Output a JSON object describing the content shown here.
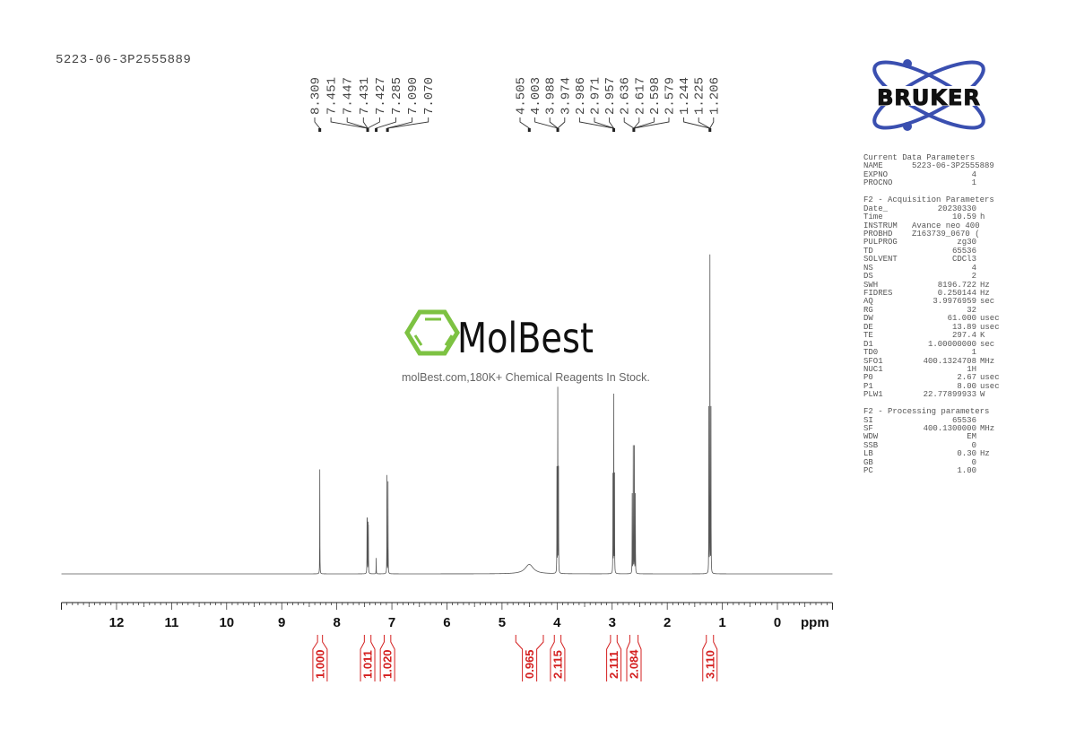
{
  "sample_id": "5223-06-3P2555889",
  "watermark": {
    "brand": "MolBest",
    "tagline": "molBest.com,180K+ Chemical Reagents In Stock.",
    "color": "#7dc242"
  },
  "logo": {
    "text": "BRUKER",
    "color": "#3a4fb0"
  },
  "parameters": {
    "sections": [
      {
        "title": "Current Data Parameters",
        "rows": [
          [
            "NAME",
            "5223-06-3P2555889",
            ""
          ],
          [
            "EXPNO",
            "4",
            ""
          ],
          [
            "PROCNO",
            "1",
            ""
          ]
        ]
      },
      {
        "title": "F2 - Acquisition Parameters",
        "rows": [
          [
            "Date_",
            "20230330",
            ""
          ],
          [
            "Time",
            "10.59",
            "h"
          ],
          [
            "INSTRUM",
            "Avance neo 400",
            ""
          ],
          [
            "PROBHD",
            "Z163739_0670 (",
            ""
          ],
          [
            "PULPROG",
            "zg30",
            ""
          ],
          [
            "TD",
            "65536",
            ""
          ],
          [
            "SOLVENT",
            "CDCl3",
            ""
          ],
          [
            "NS",
            "4",
            ""
          ],
          [
            "DS",
            "2",
            ""
          ],
          [
            "SWH",
            "8196.722",
            "Hz"
          ],
          [
            "FIDRES",
            "0.250144",
            "Hz"
          ],
          [
            "AQ",
            "3.9976959",
            "sec"
          ],
          [
            "RG",
            "32",
            ""
          ],
          [
            "DW",
            "61.000",
            "usec"
          ],
          [
            "DE",
            "13.89",
            "usec"
          ],
          [
            "TE",
            "297.4",
            "K"
          ],
          [
            "D1",
            "1.00000000",
            "sec"
          ],
          [
            "TD0",
            "1",
            ""
          ],
          [
            "SFO1",
            "400.1324708",
            "MHz"
          ],
          [
            "NUC1",
            "1H",
            ""
          ],
          [
            "P0",
            "2.67",
            "usec"
          ],
          [
            "P1",
            "8.00",
            "usec"
          ],
          [
            "PLW1",
            "22.77899933",
            "W"
          ]
        ]
      },
      {
        "title": "F2 - Processing parameters",
        "rows": [
          [
            "SI",
            "65536",
            ""
          ],
          [
            "SF",
            "400.1300000",
            "MHz"
          ],
          [
            "WDW",
            "EM",
            ""
          ],
          [
            "SSB",
            "0",
            ""
          ],
          [
            "LB",
            "0.30",
            "Hz"
          ],
          [
            "GB",
            "0",
            ""
          ],
          [
            "PC",
            "1.00",
            ""
          ]
        ]
      }
    ]
  },
  "chart_data": {
    "type": "line",
    "xlabel": "ppm",
    "xlim": [
      13.0,
      -1.0
    ],
    "x_reversed": true,
    "xticks": [
      12,
      11,
      10,
      9,
      8,
      7,
      6,
      5,
      4,
      3,
      2,
      1,
      0
    ],
    "grid": false,
    "line_color": "#555555",
    "integral_color": "#d42020",
    "peaks": [
      {
        "ppm": 8.309,
        "intensity": 0.33
      },
      {
        "ppm": 7.451,
        "intensity": 0.15
      },
      {
        "ppm": 7.447,
        "intensity": 0.15
      },
      {
        "ppm": 7.431,
        "intensity": 0.14
      },
      {
        "ppm": 7.427,
        "intensity": 0.13
      },
      {
        "ppm": 7.285,
        "intensity": 0.05
      },
      {
        "ppm": 7.09,
        "intensity": 0.31
      },
      {
        "ppm": 7.07,
        "intensity": 0.29
      },
      {
        "ppm": 4.505,
        "intensity": 0.03,
        "broad": true
      },
      {
        "ppm": 4.003,
        "intensity": 0.33
      },
      {
        "ppm": 3.988,
        "intensity": 0.58
      },
      {
        "ppm": 3.974,
        "intensity": 0.33
      },
      {
        "ppm": 2.986,
        "intensity": 0.31
      },
      {
        "ppm": 2.971,
        "intensity": 0.56
      },
      {
        "ppm": 2.957,
        "intensity": 0.31
      },
      {
        "ppm": 2.636,
        "intensity": 0.25
      },
      {
        "ppm": 2.617,
        "intensity": 0.4
      },
      {
        "ppm": 2.598,
        "intensity": 0.4
      },
      {
        "ppm": 2.579,
        "intensity": 0.25
      },
      {
        "ppm": 1.244,
        "intensity": 0.52
      },
      {
        "ppm": 1.225,
        "intensity": 1.0
      },
      {
        "ppm": 1.206,
        "intensity": 0.52
      }
    ],
    "peak_label_groups": [
      {
        "labels": [
          "8.309"
        ],
        "target": 8.309
      },
      {
        "labels": [
          "7.451",
          "7.447",
          "7.431",
          "7.427"
        ],
        "target": 7.44
      },
      {
        "labels": [
          "7.285"
        ],
        "target": 7.285
      },
      {
        "labels": [
          "7.090",
          "7.070"
        ],
        "target": 7.08
      },
      {
        "labels": [
          "4.505"
        ],
        "target": 4.505
      },
      {
        "labels": [
          "4.003",
          "3.988",
          "3.974"
        ],
        "target": 3.988
      },
      {
        "labels": [
          "2.986",
          "2.971",
          "2.957"
        ],
        "target": 2.971
      },
      {
        "labels": [
          "2.636",
          "2.617",
          "2.598",
          "2.579"
        ],
        "target": 2.607
      },
      {
        "labels": [
          "1.244",
          "1.225",
          "1.206"
        ],
        "target": 1.225
      }
    ],
    "integrals": [
      {
        "from": 8.35,
        "to": 8.26,
        "value": "1.000"
      },
      {
        "from": 7.5,
        "to": 7.38,
        "value": "1.011"
      },
      {
        "from": 7.14,
        "to": 7.02,
        "value": "1.020"
      },
      {
        "from": 4.75,
        "to": 4.25,
        "value": "0.965"
      },
      {
        "from": 4.05,
        "to": 3.93,
        "value": "2.115"
      },
      {
        "from": 3.03,
        "to": 2.91,
        "value": "2.111"
      },
      {
        "from": 2.68,
        "to": 2.53,
        "value": "2.084"
      },
      {
        "from": 1.29,
        "to": 1.16,
        "value": "3.110"
      }
    ]
  }
}
